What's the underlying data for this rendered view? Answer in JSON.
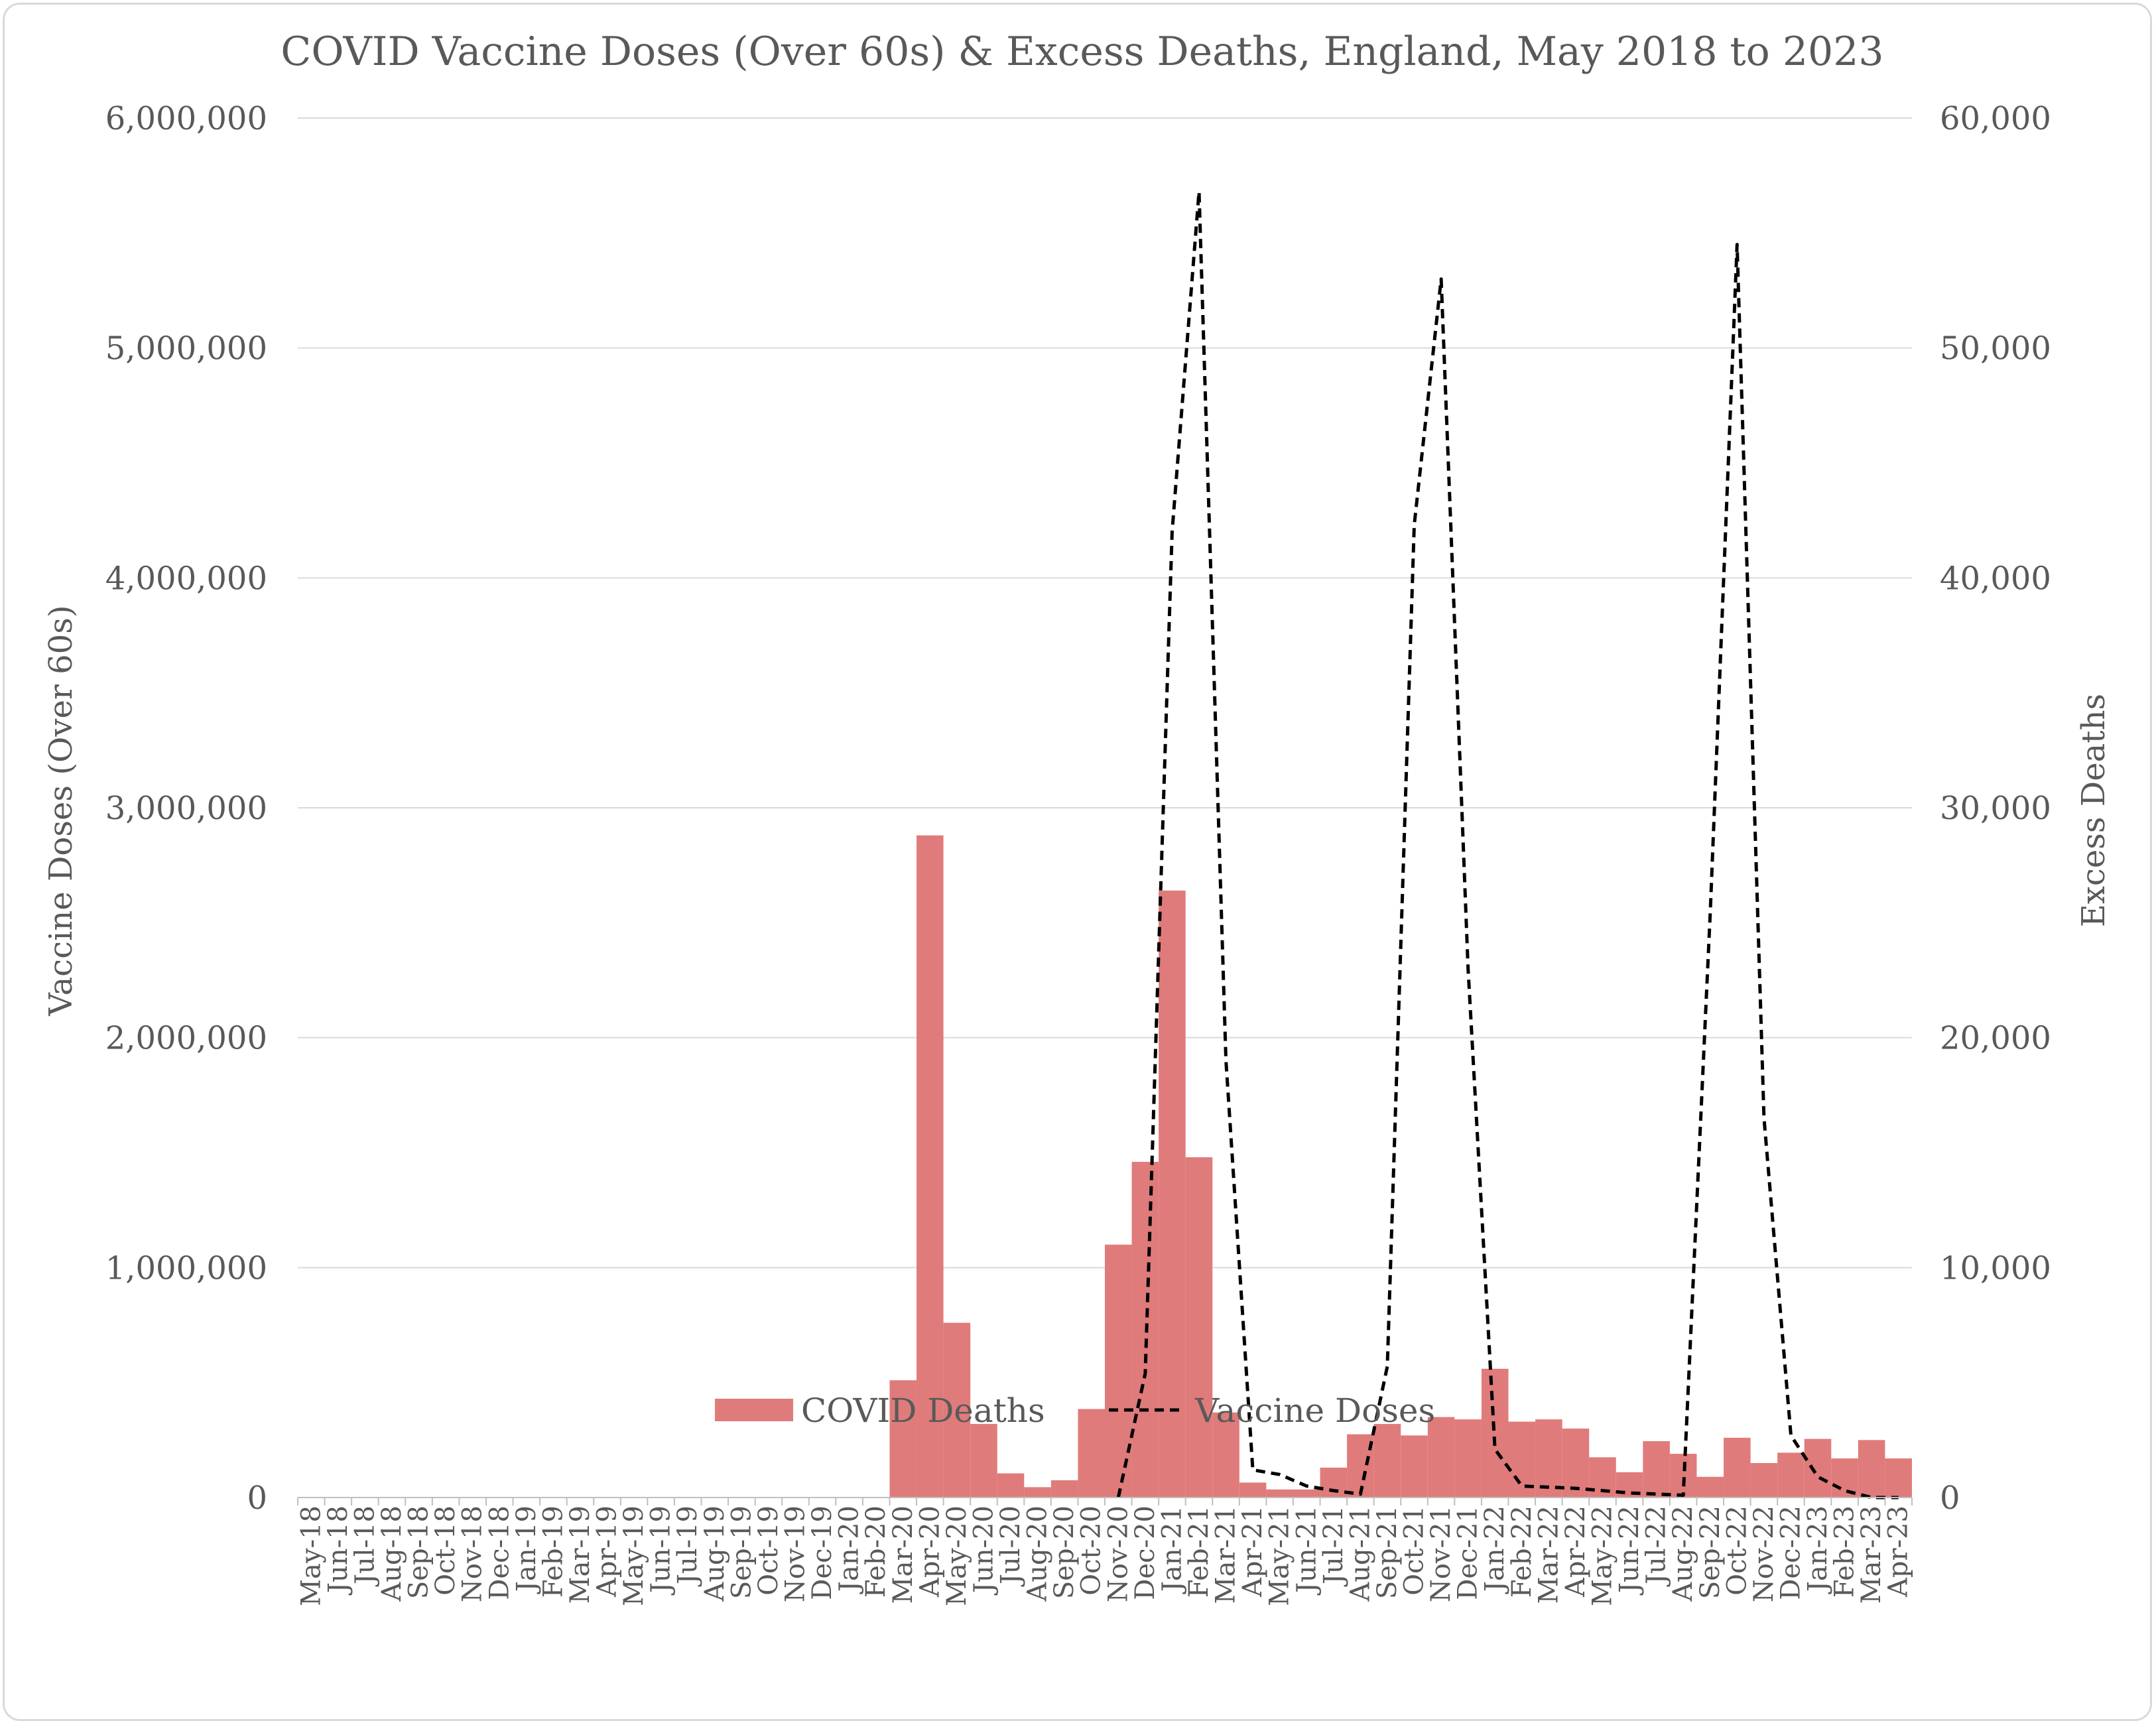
{
  "chart_data": {
    "type": "bar",
    "title": "COVID Vaccine Doses (Over 60s) & Excess Deaths, England, May 2018 to 2023",
    "ylabel_left": "Vaccine Doses (Over 60s)",
    "ylabel_right": "Excess Deaths",
    "ylim_left": [
      0,
      6000000
    ],
    "ylim_right": [
      0,
      60000
    ],
    "yticks_left": [
      "0",
      "1,000,000",
      "2,000,000",
      "3,000,000",
      "4,000,000",
      "5,000,000",
      "6,000,000"
    ],
    "yticks_right": [
      "0",
      "10,000",
      "20,000",
      "30,000",
      "40,000",
      "50,000",
      "60,000"
    ],
    "grid": true,
    "legend_position": "bottom",
    "categories": [
      "May-18",
      "Jun-18",
      "Jul-18",
      "Aug-18",
      "Sep-18",
      "Oct-18",
      "Nov-18",
      "Dec-18",
      "Jan-19",
      "Feb-19",
      "Mar-19",
      "Apr-19",
      "May-19",
      "Jun-19",
      "Jul-19",
      "Aug-19",
      "Sep-19",
      "Oct-19",
      "Nov-19",
      "Dec-19",
      "Jan-20",
      "Feb-20",
      "Mar-20",
      "Apr-20",
      "May-20",
      "Jun-20",
      "Jul-20",
      "Aug-20",
      "Sep-20",
      "Oct-20",
      "Nov-20",
      "Dec-20",
      "Jan-21",
      "Feb-21",
      "Mar-21",
      "Apr-21",
      "May-21",
      "Jun-21",
      "Jul-21",
      "Aug-21",
      "Sep-21",
      "Oct-21",
      "Nov-21",
      "Dec-21",
      "Jan-22",
      "Feb-22",
      "Mar-22",
      "Apr-22",
      "May-22",
      "Jun-22",
      "Jul-22",
      "Aug-22",
      "Sep-22",
      "Oct-22",
      "Nov-22",
      "Dec-22",
      "Jan-23",
      "Feb-23",
      "Mar-23",
      "Apr-23"
    ],
    "series": [
      {
        "name": "COVID Deaths",
        "type": "bar",
        "axis": "right",
        "color": "#e07b7b",
        "values": [
          0,
          0,
          0,
          0,
          0,
          0,
          0,
          0,
          0,
          0,
          0,
          0,
          0,
          0,
          0,
          0,
          0,
          0,
          0,
          0,
          0,
          0,
          5100,
          28800,
          7600,
          3200,
          1050,
          450,
          750,
          3850,
          11000,
          14600,
          26400,
          14800,
          3700,
          650,
          350,
          350,
          1300,
          2750,
          3200,
          2700,
          3500,
          3400,
          5600,
          3300,
          3400,
          3000,
          1750,
          1100,
          2450,
          1900,
          900,
          2600,
          1500,
          1950,
          2550,
          1700,
          2500,
          1700
        ]
      },
      {
        "name": "Vaccine Doses",
        "type": "line",
        "axis": "left",
        "color": "#000000",
        "dash": "dashed",
        "values": [
          null,
          null,
          null,
          null,
          null,
          null,
          null,
          null,
          null,
          null,
          null,
          null,
          null,
          null,
          null,
          null,
          null,
          null,
          null,
          null,
          null,
          null,
          null,
          null,
          null,
          null,
          null,
          null,
          null,
          null,
          0,
          540000,
          4200000,
          5680000,
          1900000,
          120000,
          100000,
          50000,
          30000,
          15000,
          570000,
          4230000,
          5300000,
          2300000,
          210000,
          50000,
          45000,
          40000,
          30000,
          20000,
          15000,
          10000,
          2540000,
          5450000,
          1650000,
          270000,
          90000,
          30000,
          0,
          0
        ]
      }
    ]
  }
}
